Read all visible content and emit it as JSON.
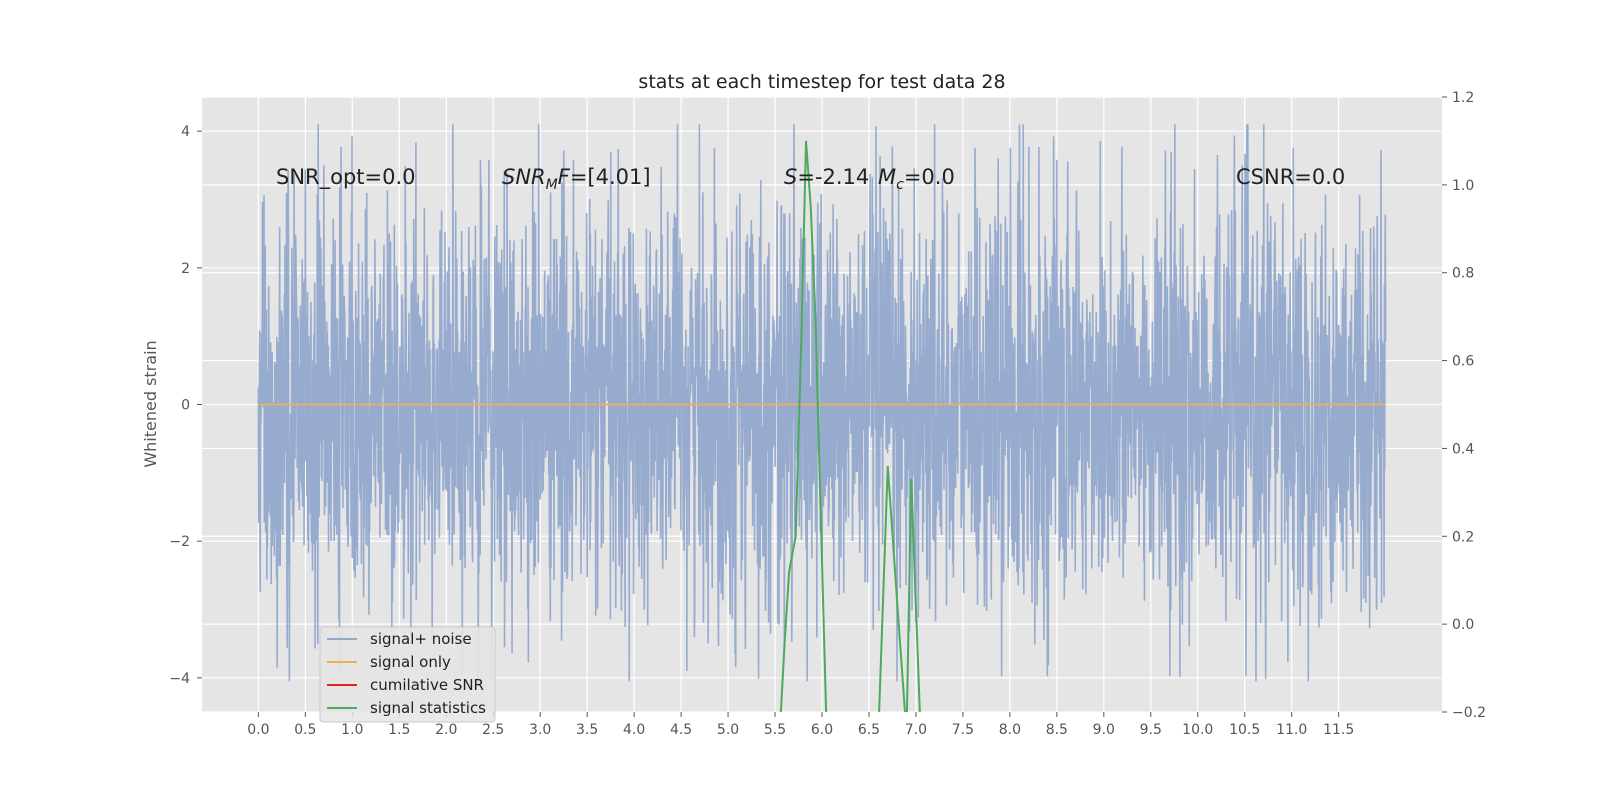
{
  "chart_data": {
    "type": "line",
    "title": "stats at each timestep for test data 28",
    "ylabel": "Whitened strain",
    "ylabel_right": "",
    "xlabel": "",
    "xlim": [
      -0.6,
      12.6
    ],
    "ylim": [
      -4.5,
      4.5
    ],
    "ylim_right": [
      -0.2,
      1.2
    ],
    "grid": true,
    "legend_position": "lower-left",
    "x_ticks": [
      "0.0",
      "0.5",
      "1.0",
      "1.5",
      "2.0",
      "2.5",
      "3.0",
      "3.5",
      "4.0",
      "4.5",
      "5.0",
      "5.5",
      "6.0",
      "6.5",
      "7.0",
      "7.5",
      "8.0",
      "8.5",
      "9.0",
      "9.5",
      "10.0",
      "10.5",
      "11.0",
      "11.5"
    ],
    "y_ticks_left": [
      "4",
      "2",
      "0",
      "−2",
      "−4"
    ],
    "y_ticks_right": [
      "1.2",
      "1.0",
      "0.8",
      "0.6",
      "0.4",
      "0.2",
      "0.0",
      "−0.2"
    ],
    "annotations": {
      "snr_opt": "SNR_opt=0.0",
      "snr_mf_var": "SNR",
      "snr_mf_sub": "M",
      "snr_mf_var2": "F",
      "snr_mf_val": "=[4.01]",
      "s_var": "S",
      "s_val": "=-2.14",
      "mc_var": "M",
      "mc_sub": "c",
      "mc_val": "=0.0",
      "csnr": "CSNR=0.0"
    },
    "series": [
      {
        "name": "signal+ noise",
        "color": "#92a8cd",
        "axis": "left",
        "x_range": [
          0.0,
          12.0
        ],
        "envelope": {
          "typical_amplitude": 2.0,
          "peak_max": 4.1,
          "peak_min": -4.05
        }
      },
      {
        "name": "signal only",
        "color": "#eeb050",
        "axis": "left",
        "x": [
          0.0,
          12.0
        ],
        "values": [
          0.0,
          0.0
        ]
      },
      {
        "name": "cumilative SNR",
        "color": "#e2231a",
        "axis": "right",
        "x": [],
        "values": []
      },
      {
        "name": "signal statistics",
        "color": "#4ea95c",
        "axis": "right",
        "x": [
          5.55,
          5.6,
          5.65,
          5.72,
          5.78,
          5.83,
          5.88,
          5.93,
          5.98,
          6.05,
          6.6,
          6.7,
          6.8,
          6.9,
          6.95,
          7.05
        ],
        "values": [
          -0.25,
          -0.05,
          0.12,
          0.2,
          0.65,
          1.1,
          0.95,
          0.7,
          0.3,
          -0.25,
          -0.25,
          0.36,
          0.05,
          -0.25,
          0.33,
          -0.25
        ]
      }
    ]
  }
}
